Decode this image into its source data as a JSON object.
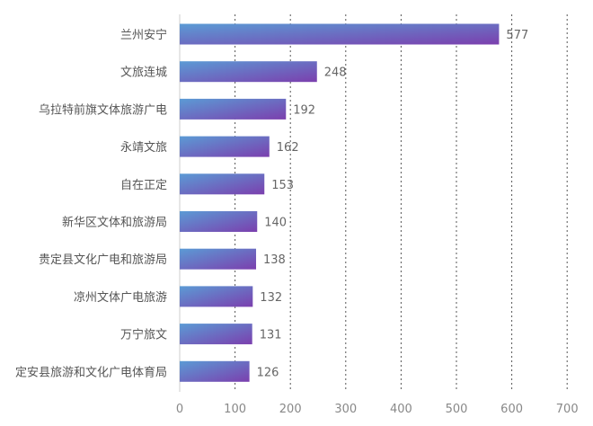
{
  "chart_data": {
    "type": "bar",
    "orientation": "horizontal",
    "categories": [
      "兰州安宁",
      "文旅连城",
      "乌拉特前旗文体旅游广电",
      "永靖文旅",
      "自在正定",
      "新华区文体和旅游局",
      "贵定县文化广电和旅游局",
      "凉州文体广电旅游",
      "万宁旅文",
      "定安县旅游和文化广电体育局"
    ],
    "values": [
      577,
      248,
      192,
      162,
      153,
      140,
      138,
      132,
      131,
      126
    ],
    "value_labels": [
      "577",
      "248",
      "192",
      "162",
      "153",
      "140",
      "138",
      "132",
      "131",
      "126"
    ],
    "xticks": [
      "0",
      "100",
      "200",
      "300",
      "400",
      "500",
      "600",
      "700"
    ],
    "xlim": [
      0,
      700
    ],
    "grid": "vertical-dotted",
    "colors": {
      "bar_start": "#5b9bd5",
      "bar_end": "#7b3fae",
      "grid": "#555555",
      "axis": "#cccccc"
    }
  }
}
